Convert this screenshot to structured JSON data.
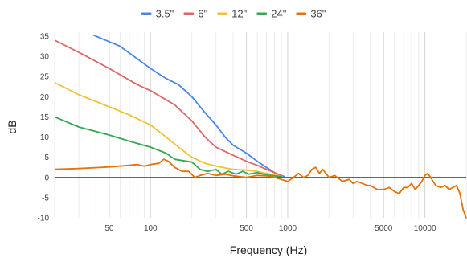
{
  "chart_data": {
    "type": "line",
    "xlabel": "Frequency (Hz)",
    "ylabel": "dB",
    "x_scale": "log",
    "xlim": [
      20,
      20000
    ],
    "ylim": [
      -10,
      35
    ],
    "x_ticks": [
      50,
      100,
      500,
      1000,
      5000,
      10000
    ],
    "x_tick_labels": [
      "50",
      "100",
      "500",
      "1000",
      "5000",
      "10000"
    ],
    "y_ticks": [
      -10,
      -5,
      0,
      5,
      10,
      15,
      20,
      25,
      30,
      35
    ],
    "y_tick_labels": [
      "-10",
      "-5",
      "0",
      "5",
      "10",
      "15",
      "20",
      "25",
      "30",
      "35"
    ],
    "grid": "vertical",
    "legend_position": "top",
    "series": [
      {
        "name": "3.5\"",
        "color": "#4a86e8",
        "points": [
          [
            30,
            37
          ],
          [
            40,
            35
          ],
          [
            60,
            32.5
          ],
          [
            100,
            27
          ],
          [
            130,
            24.5
          ],
          [
            160,
            23
          ],
          [
            200,
            20
          ],
          [
            250,
            16
          ],
          [
            300,
            13
          ],
          [
            350,
            10
          ],
          [
            400,
            8
          ],
          [
            500,
            6
          ],
          [
            600,
            4
          ],
          [
            700,
            2.5
          ],
          [
            800,
            1.2
          ],
          [
            900,
            0.5
          ],
          [
            950,
            0.2
          ]
        ]
      },
      {
        "name": "6\"",
        "color": "#e06666",
        "points": [
          [
            20,
            34
          ],
          [
            30,
            31
          ],
          [
            50,
            27
          ],
          [
            80,
            23
          ],
          [
            100,
            21.5
          ],
          [
            150,
            18
          ],
          [
            200,
            14
          ],
          [
            250,
            10
          ],
          [
            300,
            7.5
          ],
          [
            400,
            5.5
          ],
          [
            500,
            4
          ],
          [
            600,
            3
          ],
          [
            700,
            2
          ],
          [
            800,
            1.2
          ],
          [
            900,
            0.5
          ]
        ]
      },
      {
        "name": "12\"",
        "color": "#f1c232",
        "points": [
          [
            20,
            23.5
          ],
          [
            30,
            20.5
          ],
          [
            50,
            17.5
          ],
          [
            70,
            15.5
          ],
          [
            100,
            13
          ],
          [
            130,
            10
          ],
          [
            160,
            7.5
          ],
          [
            200,
            5
          ],
          [
            250,
            3.5
          ],
          [
            300,
            2.8
          ],
          [
            400,
            2
          ],
          [
            500,
            1.8
          ],
          [
            600,
            1.5
          ],
          [
            700,
            1
          ],
          [
            800,
            0.6
          ],
          [
            900,
            0.2
          ]
        ]
      },
      {
        "name": "24\"",
        "color": "#34a853",
        "points": [
          [
            20,
            15
          ],
          [
            30,
            12.5
          ],
          [
            50,
            10.5
          ],
          [
            70,
            9
          ],
          [
            100,
            7.5
          ],
          [
            130,
            6
          ],
          [
            150,
            4.5
          ],
          [
            200,
            3.8
          ],
          [
            230,
            2
          ],
          [
            260,
            1.5
          ],
          [
            300,
            2
          ],
          [
            330,
            0.8
          ],
          [
            370,
            1.5
          ],
          [
            420,
            0.8
          ],
          [
            470,
            1.5
          ],
          [
            520,
            0.8
          ],
          [
            600,
            1.2
          ],
          [
            700,
            0.6
          ],
          [
            800,
            0.4
          ],
          [
            900,
            0.2
          ]
        ]
      },
      {
        "name": "36\"",
        "color": "#e8710a",
        "points": [
          [
            20,
            2
          ],
          [
            30,
            2.2
          ],
          [
            50,
            2.6
          ],
          [
            70,
            3
          ],
          [
            80,
            3.2
          ],
          [
            90,
            2.8
          ],
          [
            100,
            3.2
          ],
          [
            115,
            3.5
          ],
          [
            125,
            4.5
          ],
          [
            135,
            4
          ],
          [
            150,
            2.5
          ],
          [
            170,
            1.5
          ],
          [
            190,
            1.5
          ],
          [
            210,
            0
          ],
          [
            230,
            0.5
          ],
          [
            260,
            1
          ],
          [
            300,
            0.5
          ],
          [
            350,
            0.8
          ],
          [
            400,
            0.4
          ],
          [
            500,
            0
          ],
          [
            600,
            0.5
          ],
          [
            700,
            0.4
          ],
          [
            800,
            0
          ],
          [
            900,
            -0.5
          ],
          [
            1000,
            -1
          ],
          [
            1100,
            0
          ],
          [
            1200,
            1
          ],
          [
            1300,
            0
          ],
          [
            1400,
            0.5
          ],
          [
            1500,
            2
          ],
          [
            1600,
            2.5
          ],
          [
            1700,
            1
          ],
          [
            1800,
            2
          ],
          [
            1900,
            1
          ],
          [
            2000,
            0
          ],
          [
            2200,
            0.5
          ],
          [
            2500,
            -1
          ],
          [
            2800,
            -0.5
          ],
          [
            3000,
            -1.5
          ],
          [
            3200,
            -1
          ],
          [
            3500,
            -1.5
          ],
          [
            3800,
            -2
          ],
          [
            4000,
            -2
          ],
          [
            4500,
            -3
          ],
          [
            5000,
            -3
          ],
          [
            5500,
            -2.5
          ],
          [
            6000,
            -3.5
          ],
          [
            6500,
            -4
          ],
          [
            7000,
            -2.5
          ],
          [
            7500,
            -2.5
          ],
          [
            8000,
            -1.5
          ],
          [
            8500,
            -3
          ],
          [
            9000,
            -2
          ],
          [
            9500,
            -1
          ],
          [
            10000,
            0.5
          ],
          [
            10500,
            1
          ],
          [
            11000,
            0
          ],
          [
            12000,
            -2
          ],
          [
            13000,
            -2.5
          ],
          [
            14000,
            -2
          ],
          [
            15000,
            -3
          ],
          [
            16000,
            -2.5
          ],
          [
            17000,
            -2
          ],
          [
            18000,
            -4
          ],
          [
            19000,
            -8
          ],
          [
            20000,
            -10
          ]
        ]
      }
    ]
  }
}
